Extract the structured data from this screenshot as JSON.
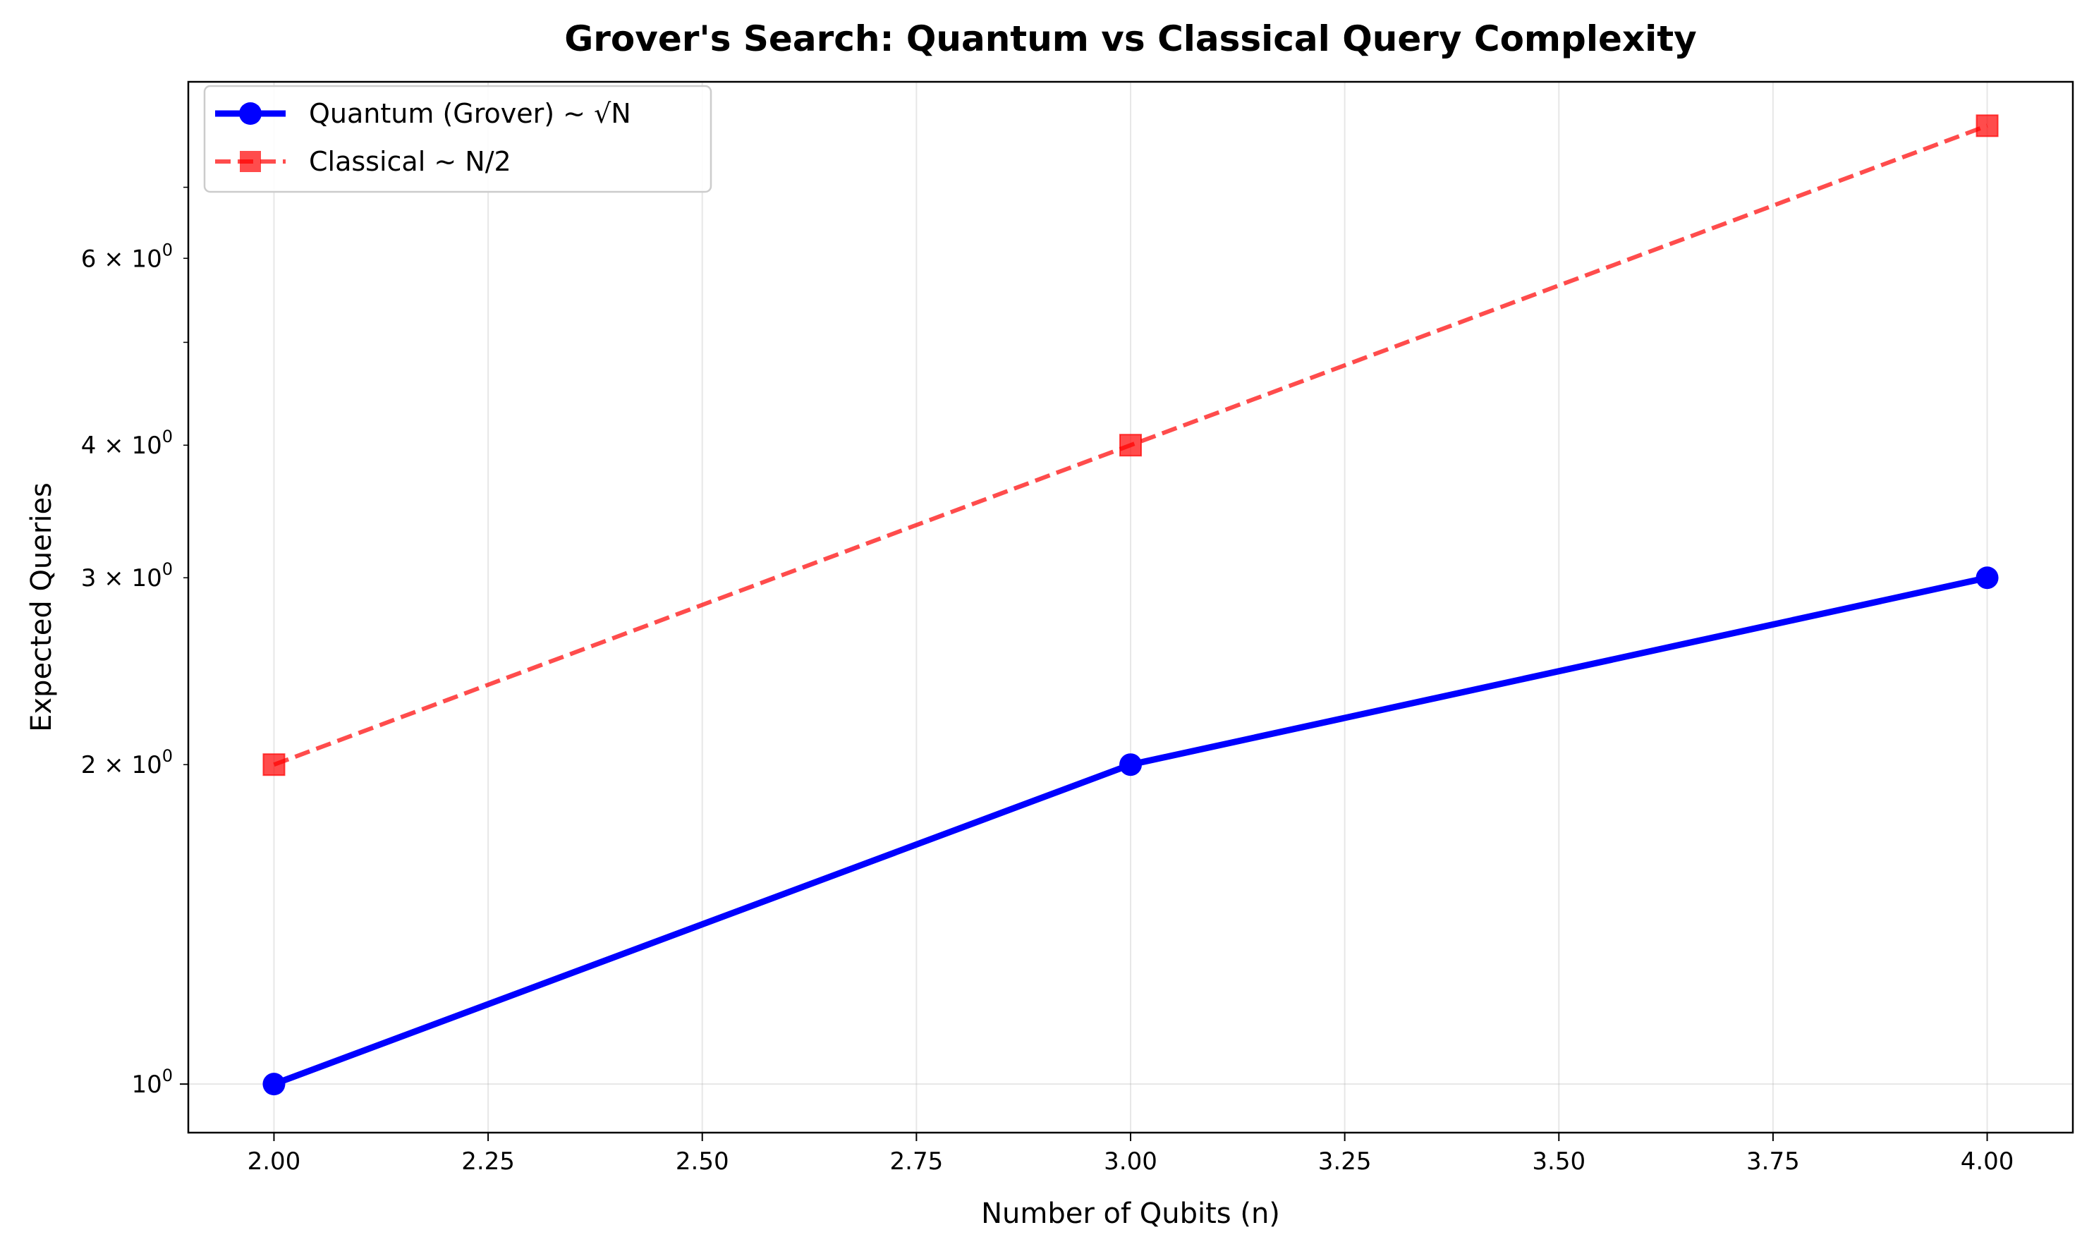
{
  "chart_data": {
    "type": "line",
    "title": "Grover's Search: Quantum vs Classical Query Complexity",
    "xlabel": "Number of Qubits (n)",
    "ylabel": "Expected Queries",
    "x": [
      2,
      3,
      4
    ],
    "xlim": [
      1.9,
      4.1
    ],
    "ylim": [
      0.9,
      8.8
    ],
    "yscale": "log",
    "xticks": [
      2.0,
      2.25,
      2.5,
      2.75,
      3.0,
      3.25,
      3.5,
      3.75,
      4.0
    ],
    "xtick_labels": [
      "2.00",
      "2.25",
      "2.50",
      "2.75",
      "3.00",
      "3.25",
      "3.50",
      "3.75",
      "4.00"
    ],
    "yticks_major": [
      {
        "value": 1,
        "mantissa": "",
        "exp": "0"
      }
    ],
    "yticks_minor_labeled": [
      {
        "value": 2,
        "mantissa": "2",
        "exp": "0"
      },
      {
        "value": 3,
        "mantissa": "3",
        "exp": "0"
      },
      {
        "value": 4,
        "mantissa": "4",
        "exp": "0"
      },
      {
        "value": 6,
        "mantissa": "6",
        "exp": "0"
      }
    ],
    "yticks_minor_unlabeled": [
      5,
      7
    ],
    "grid": true,
    "legend_position": "upper-left",
    "series": [
      {
        "name": "Quantum (Grover) ~ √N",
        "values": [
          1,
          2,
          3
        ],
        "color": "#0000ff",
        "linestyle": "solid",
        "marker": "circle"
      },
      {
        "name": "Classical ~ N/2",
        "values": [
          2,
          4,
          8
        ],
        "color": "#ff0000",
        "opacity": 0.7,
        "linestyle": "dashed",
        "marker": "square"
      }
    ]
  }
}
